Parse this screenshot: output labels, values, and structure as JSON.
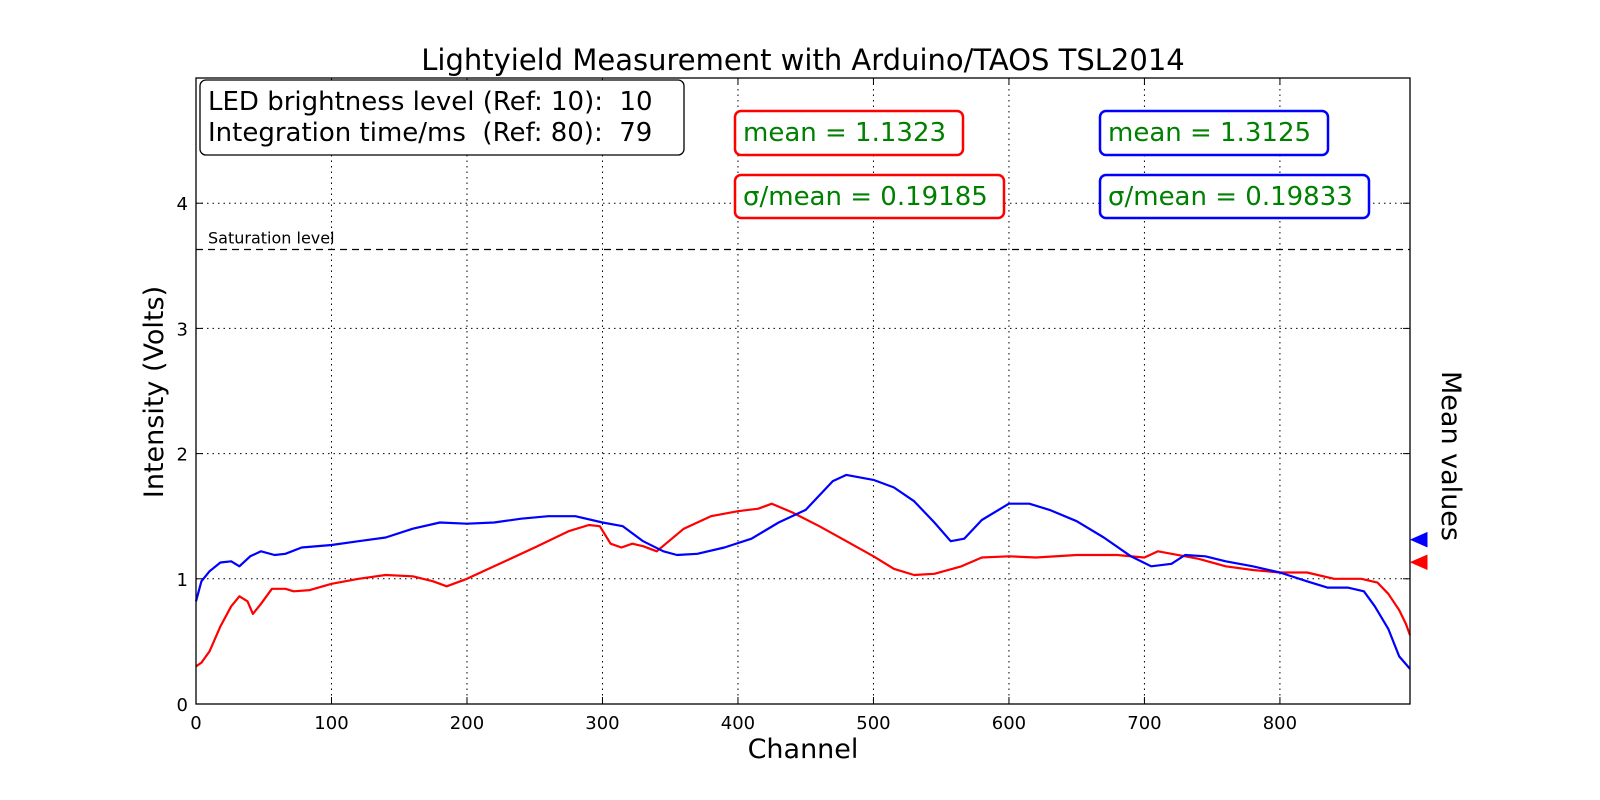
{
  "chart_data": {
    "type": "line",
    "title": "Lightyield Measurement with Arduino/TAOS TSL2014",
    "xlabel": "Channel",
    "ylabel": "Intensity (Volts)",
    "right_label": "Mean values",
    "xlim": [
      0,
      896
    ],
    "ylim": [
      0,
      5
    ],
    "x_ticks": [
      0,
      100,
      200,
      300,
      400,
      500,
      600,
      700,
      800
    ],
    "y_ticks": [
      0,
      1,
      2,
      3,
      4
    ],
    "grid": true,
    "colors": {
      "series_red": "#ff0000",
      "series_blue": "#0000ff",
      "stat_text": "#008000"
    },
    "info_box": {
      "line1": "LED brightness level (Ref: 10):  10",
      "line2": "Integration time/ms  (Ref: 80):  79"
    },
    "saturation": {
      "label": "Saturation level",
      "value": 3.63
    },
    "stats": {
      "red_mean": "mean = 1.1323",
      "red_sigma": "σ/mean = 0.19185",
      "blue_mean": "mean = 1.3125",
      "blue_sigma": "σ/mean = 0.19833"
    },
    "mean_markers": [
      {
        "series": "red",
        "value": 1.1323
      },
      {
        "series": "blue",
        "value": 1.3125
      }
    ],
    "series": [
      {
        "color": "red",
        "points": [
          [
            0,
            0.3
          ],
          [
            4,
            0.33
          ],
          [
            10,
            0.42
          ],
          [
            18,
            0.62
          ],
          [
            26,
            0.78
          ],
          [
            32,
            0.86
          ],
          [
            38,
            0.82
          ],
          [
            42,
            0.72
          ],
          [
            48,
            0.8
          ],
          [
            56,
            0.92
          ],
          [
            66,
            0.92
          ],
          [
            72,
            0.9
          ],
          [
            84,
            0.91
          ],
          [
            100,
            0.96
          ],
          [
            120,
            1.0
          ],
          [
            140,
            1.03
          ],
          [
            160,
            1.02
          ],
          [
            175,
            0.98
          ],
          [
            185,
            0.94
          ],
          [
            200,
            1.0
          ],
          [
            220,
            1.1
          ],
          [
            250,
            1.25
          ],
          [
            275,
            1.38
          ],
          [
            290,
            1.43
          ],
          [
            298,
            1.42
          ],
          [
            306,
            1.28
          ],
          [
            314,
            1.25
          ],
          [
            322,
            1.28
          ],
          [
            330,
            1.26
          ],
          [
            340,
            1.22
          ],
          [
            360,
            1.4
          ],
          [
            380,
            1.5
          ],
          [
            400,
            1.54
          ],
          [
            415,
            1.56
          ],
          [
            425,
            1.6
          ],
          [
            440,
            1.53
          ],
          [
            460,
            1.42
          ],
          [
            480,
            1.3
          ],
          [
            500,
            1.18
          ],
          [
            515,
            1.08
          ],
          [
            530,
            1.03
          ],
          [
            545,
            1.04
          ],
          [
            565,
            1.1
          ],
          [
            580,
            1.17
          ],
          [
            600,
            1.18
          ],
          [
            620,
            1.17
          ],
          [
            650,
            1.19
          ],
          [
            680,
            1.19
          ],
          [
            700,
            1.17
          ],
          [
            710,
            1.22
          ],
          [
            720,
            1.2
          ],
          [
            740,
            1.16
          ],
          [
            760,
            1.1
          ],
          [
            780,
            1.07
          ],
          [
            800,
            1.05
          ],
          [
            820,
            1.05
          ],
          [
            840,
            1.0
          ],
          [
            860,
            1.0
          ],
          [
            872,
            0.97
          ],
          [
            880,
            0.88
          ],
          [
            888,
            0.75
          ],
          [
            893,
            0.64
          ],
          [
            896,
            0.55
          ]
        ]
      },
      {
        "color": "blue",
        "points": [
          [
            0,
            0.82
          ],
          [
            4,
            0.98
          ],
          [
            10,
            1.06
          ],
          [
            18,
            1.13
          ],
          [
            26,
            1.14
          ],
          [
            32,
            1.1
          ],
          [
            40,
            1.18
          ],
          [
            48,
            1.22
          ],
          [
            58,
            1.19
          ],
          [
            66,
            1.2
          ],
          [
            78,
            1.25
          ],
          [
            100,
            1.27
          ],
          [
            120,
            1.3
          ],
          [
            140,
            1.33
          ],
          [
            160,
            1.4
          ],
          [
            180,
            1.45
          ],
          [
            200,
            1.44
          ],
          [
            220,
            1.45
          ],
          [
            240,
            1.48
          ],
          [
            260,
            1.5
          ],
          [
            280,
            1.5
          ],
          [
            300,
            1.45
          ],
          [
            315,
            1.42
          ],
          [
            330,
            1.3
          ],
          [
            345,
            1.22
          ],
          [
            355,
            1.19
          ],
          [
            370,
            1.2
          ],
          [
            390,
            1.25
          ],
          [
            410,
            1.32
          ],
          [
            430,
            1.45
          ],
          [
            450,
            1.55
          ],
          [
            470,
            1.78
          ],
          [
            480,
            1.83
          ],
          [
            490,
            1.81
          ],
          [
            500,
            1.79
          ],
          [
            515,
            1.73
          ],
          [
            530,
            1.62
          ],
          [
            545,
            1.45
          ],
          [
            557,
            1.3
          ],
          [
            567,
            1.32
          ],
          [
            580,
            1.47
          ],
          [
            600,
            1.6
          ],
          [
            615,
            1.6
          ],
          [
            630,
            1.55
          ],
          [
            650,
            1.46
          ],
          [
            670,
            1.33
          ],
          [
            690,
            1.18
          ],
          [
            705,
            1.1
          ],
          [
            720,
            1.12
          ],
          [
            730,
            1.19
          ],
          [
            745,
            1.18
          ],
          [
            760,
            1.14
          ],
          [
            780,
            1.1
          ],
          [
            800,
            1.05
          ],
          [
            820,
            0.98
          ],
          [
            835,
            0.93
          ],
          [
            850,
            0.93
          ],
          [
            862,
            0.9
          ],
          [
            870,
            0.78
          ],
          [
            880,
            0.6
          ],
          [
            888,
            0.38
          ],
          [
            896,
            0.28
          ]
        ]
      }
    ]
  }
}
